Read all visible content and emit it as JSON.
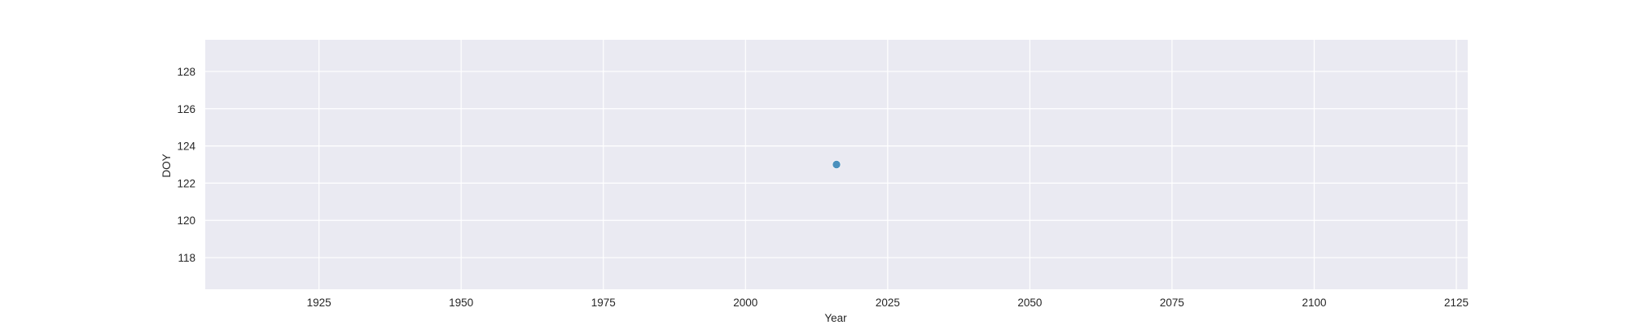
{
  "chart_data": {
    "type": "scatter",
    "title": "",
    "xlabel": "Year",
    "ylabel": "DOY",
    "xlim": [
      1905,
      2127
    ],
    "ylim": [
      116.3,
      129.7
    ],
    "xticks": [
      1925,
      1950,
      1975,
      2000,
      2025,
      2050,
      2075,
      2100,
      2125
    ],
    "yticks": [
      118,
      120,
      122,
      124,
      126,
      128
    ],
    "grid": true,
    "legend": "none",
    "series": [
      {
        "points": [
          {
            "x": 2016,
            "y": 123
          }
        ],
        "color": "#3a86b7"
      }
    ]
  },
  "style": {
    "plot_background": "#eaeaf2",
    "grid_color": "#ffffff",
    "text_color": "#262626"
  }
}
